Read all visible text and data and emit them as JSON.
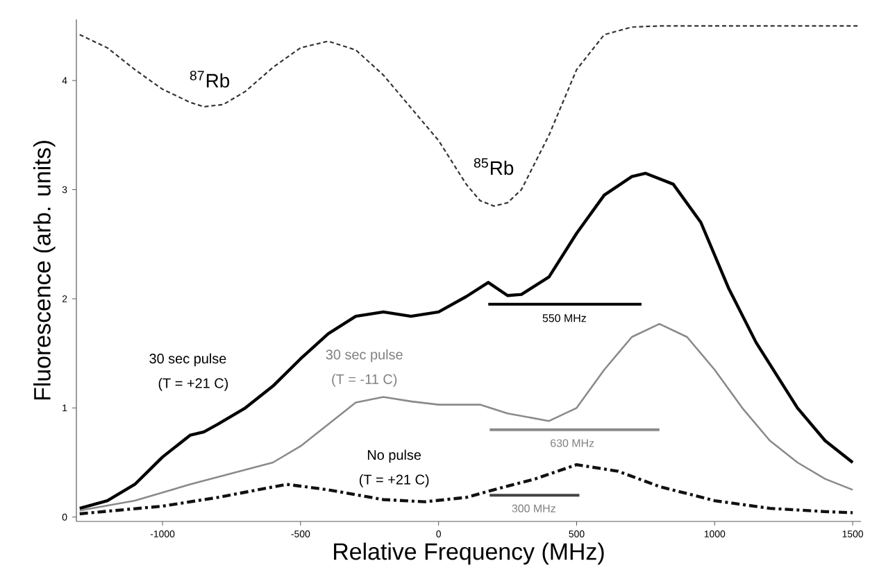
{
  "chart_data": {
    "type": "line",
    "xlabel": "Relative Frequency (MHz)",
    "ylabel": "Fluorescence (arb. units)",
    "xlim": [
      -1312,
      1530
    ],
    "ylim": [
      -0.04,
      4.56
    ],
    "xticks": [
      -1000,
      -500,
      0,
      500,
      1000,
      1500
    ],
    "yticks": [
      0,
      1,
      2,
      3,
      4
    ],
    "grid": false,
    "series": [
      {
        "color": "#333333",
        "line_style": "dashed",
        "x": [
          -1300,
          -1200,
          -1100,
          -1000,
          -900,
          -850,
          -780,
          -700,
          -600,
          -500,
          -400,
          -300,
          -200,
          -150,
          -50,
          0,
          100,
          150,
          200,
          250,
          300,
          400,
          500,
          600,
          700,
          800,
          1000,
          1200,
          1520
        ],
        "values": [
          4.42,
          4.3,
          4.1,
          3.92,
          3.8,
          3.76,
          3.78,
          3.9,
          4.12,
          4.3,
          4.36,
          4.28,
          4.05,
          3.9,
          3.6,
          3.45,
          3.05,
          2.9,
          2.85,
          2.88,
          3.0,
          3.5,
          4.1,
          4.42,
          4.49,
          4.5,
          4.5,
          4.5,
          4.5
        ]
      },
      {
        "color": "#000000",
        "line_style": "solid",
        "x": [
          -1300,
          -1200,
          -1100,
          -1000,
          -900,
          -850,
          -800,
          -700,
          -600,
          -500,
          -400,
          -300,
          -200,
          -100,
          0,
          100,
          180,
          250,
          300,
          400,
          500,
          600,
          700,
          750,
          850,
          950,
          1050,
          1150,
          1300,
          1400,
          1500
        ],
        "values": [
          0.08,
          0.15,
          0.3,
          0.55,
          0.75,
          0.78,
          0.85,
          1.0,
          1.2,
          1.45,
          1.68,
          1.84,
          1.88,
          1.84,
          1.88,
          2.02,
          2.15,
          2.03,
          2.04,
          2.2,
          2.6,
          2.95,
          3.12,
          3.15,
          3.05,
          2.7,
          2.1,
          1.6,
          1.0,
          0.7,
          0.5
        ]
      },
      {
        "color": "#8a8a8a",
        "line_style": "solid",
        "x": [
          -1300,
          -1100,
          -900,
          -750,
          -600,
          -500,
          -400,
          -300,
          -200,
          -100,
          0,
          150,
          250,
          400,
          500,
          600,
          700,
          800,
          900,
          1000,
          1100,
          1200,
          1300,
          1400,
          1500
        ],
        "values": [
          0.06,
          0.15,
          0.3,
          0.4,
          0.5,
          0.65,
          0.85,
          1.05,
          1.1,
          1.06,
          1.03,
          1.03,
          0.95,
          0.88,
          1.0,
          1.35,
          1.65,
          1.77,
          1.65,
          1.35,
          1.0,
          0.7,
          0.5,
          0.35,
          0.25
        ]
      },
      {
        "color": "#111111",
        "line_style": "dashdot",
        "x": [
          -1300,
          -1000,
          -800,
          -550,
          -400,
          -200,
          -50,
          100,
          200,
          350,
          500,
          650,
          800,
          1000,
          1200,
          1400,
          1500
        ],
        "values": [
          0.03,
          0.1,
          0.18,
          0.3,
          0.25,
          0.16,
          0.14,
          0.18,
          0.25,
          0.35,
          0.48,
          0.42,
          0.28,
          0.15,
          0.08,
          0.05,
          0.04
        ]
      },
      {
        "color": "#000000",
        "line_style": "solid",
        "x": [
          180,
          735
        ],
        "values": [
          1.95,
          1.95
        ]
      },
      {
        "color": "#8a8a8a",
        "line_style": "solid",
        "x": [
          185,
          800
        ],
        "values": [
          0.8,
          0.8
        ]
      },
      {
        "color": "#444444",
        "line_style": "solid",
        "x": [
          185,
          510
        ],
        "values": [
          0.2,
          0.2
        ]
      }
    ],
    "annotations": [
      "$^{87}$Rb",
      "$^{85}$Rb",
      "30 sec pulse",
      "(T = +21 C)",
      "30 sec pulse",
      "(T = -11 C)",
      "No pulse",
      "(T = +21 C)",
      "550 MHz",
      "630 MHz",
      "300 MHz"
    ]
  }
}
